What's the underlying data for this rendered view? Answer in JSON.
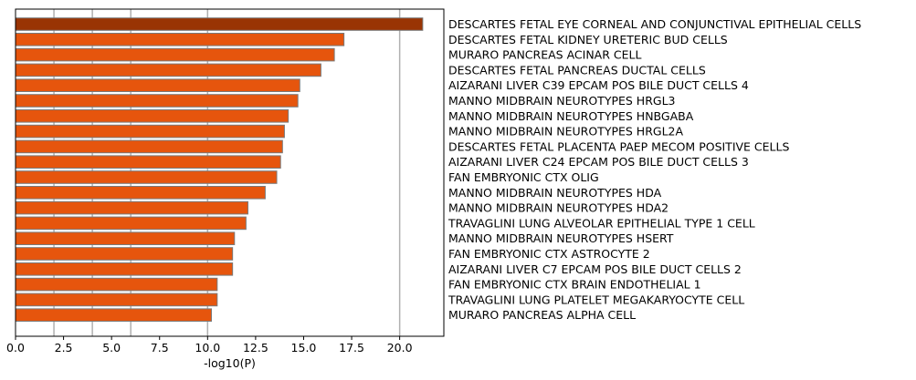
{
  "chart_data": {
    "type": "bar",
    "orientation": "horizontal",
    "xlabel": "-log10(P)",
    "xlim": [
      0,
      22.3
    ],
    "xticks": [
      0.0,
      2.5,
      5.0,
      7.5,
      10.0,
      12.5,
      15.0,
      17.5,
      20.0
    ],
    "xtick_labels": [
      "0.0",
      "2.5",
      "5.0",
      "7.5",
      "10.0",
      "12.5",
      "15.0",
      "17.5",
      "20.0"
    ],
    "vertical_gridlines": [
      2,
      4,
      6,
      10,
      20
    ],
    "grid": true,
    "label_position": "right",
    "colors": {
      "top_bar": "#993404",
      "bar": "#e6550d",
      "bar_edge": "#7a7a7a",
      "grid": "#b0b0b0"
    },
    "categories": [
      "DESCARTES FETAL EYE CORNEAL AND CONJUNCTIVAL EPITHELIAL CELLS",
      "DESCARTES FETAL KIDNEY URETERIC BUD CELLS",
      "MURARO PANCREAS ACINAR CELL",
      "DESCARTES FETAL PANCREAS DUCTAL CELLS",
      "AIZARANI LIVER C39 EPCAM POS BILE DUCT CELLS 4",
      "MANNO MIDBRAIN NEUROTYPES HRGL3",
      "MANNO MIDBRAIN NEUROTYPES HNBGABA",
      "MANNO MIDBRAIN NEUROTYPES HRGL2A",
      "DESCARTES FETAL PLACENTA PAEP MECOM POSITIVE CELLS",
      "AIZARANI LIVER C24 EPCAM POS BILE DUCT CELLS 3",
      "FAN EMBRYONIC CTX OLIG",
      "MANNO MIDBRAIN NEUROTYPES HDA",
      "MANNO MIDBRAIN NEUROTYPES HDA2",
      "TRAVAGLINI LUNG ALVEOLAR EPITHELIAL TYPE 1 CELL",
      "MANNO MIDBRAIN NEUROTYPES HSERT",
      "FAN EMBRYONIC CTX ASTROCYTE 2",
      "AIZARANI LIVER C7 EPCAM POS BILE DUCT CELLS 2",
      "FAN EMBRYONIC CTX BRAIN ENDOTHELIAL 1",
      "TRAVAGLINI LUNG PLATELET MEGAKARYOCYTE CELL",
      "MURARO PANCREAS ALPHA CELL"
    ],
    "values": [
      21.2,
      17.1,
      16.6,
      15.9,
      14.8,
      14.7,
      14.2,
      14.0,
      13.9,
      13.8,
      13.6,
      13.0,
      12.1,
      12.0,
      11.4,
      11.3,
      11.3,
      10.5,
      10.5,
      10.2
    ]
  }
}
